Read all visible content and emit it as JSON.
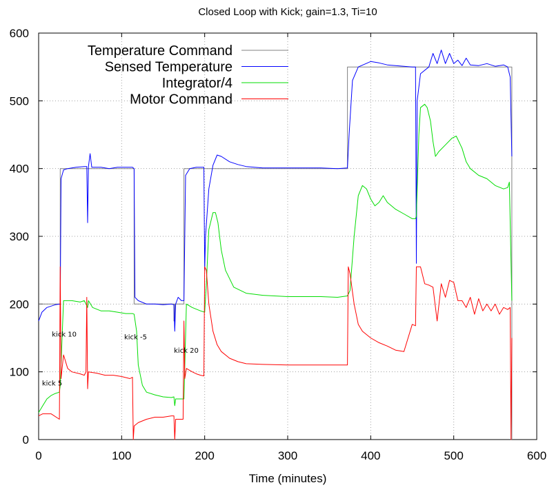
{
  "chart_data": {
    "type": "line",
    "title": "Closed Loop with Kick; gain=1.3, Ti=10",
    "xlabel": "Time (minutes)",
    "ylabel": "",
    "xlim": [
      0,
      600
    ],
    "ylim": [
      0,
      600
    ],
    "xticks": [
      "0",
      "100",
      "200",
      "300",
      "400",
      "500",
      "600"
    ],
    "yticks": [
      "0",
      "100",
      "200",
      "300",
      "400",
      "500",
      "600"
    ],
    "grid": true,
    "legend_position": "top-left",
    "series": [
      {
        "name": "Temperature Command",
        "color": "#808080",
        "points": [
          [
            0,
            200
          ],
          [
            26,
            200
          ],
          [
            26,
            400
          ],
          [
            115,
            400
          ],
          [
            115,
            200
          ],
          [
            163,
            200
          ],
          [
            163,
            175
          ],
          [
            164,
            175
          ],
          [
            164,
            200
          ],
          [
            175,
            200
          ],
          [
            175,
            400
          ],
          [
            372,
            400
          ],
          [
            372,
            550
          ],
          [
            570,
            550
          ],
          [
            570,
            0
          ]
        ]
      },
      {
        "name": "Sensed Temperature",
        "color": "#0000ff",
        "points": [
          [
            0,
            175
          ],
          [
            4,
            188
          ],
          [
            10,
            195
          ],
          [
            20,
            199
          ],
          [
            26,
            200
          ],
          [
            27,
            385
          ],
          [
            30,
            398
          ],
          [
            35,
            400
          ],
          [
            45,
            402
          ],
          [
            55,
            403
          ],
          [
            58,
            403
          ],
          [
            59,
            320
          ],
          [
            60,
            403
          ],
          [
            62,
            422
          ],
          [
            64,
            402
          ],
          [
            75,
            402
          ],
          [
            85,
            400
          ],
          [
            95,
            402
          ],
          [
            105,
            402
          ],
          [
            113,
            402
          ],
          [
            115,
            400
          ],
          [
            116,
            210
          ],
          [
            120,
            205
          ],
          [
            130,
            200
          ],
          [
            140,
            200
          ],
          [
            150,
            199
          ],
          [
            160,
            200
          ],
          [
            163,
            199
          ],
          [
            164,
            160
          ],
          [
            165,
            200
          ],
          [
            168,
            210
          ],
          [
            172,
            205
          ],
          [
            175,
            205
          ],
          [
            177,
            390
          ],
          [
            182,
            400
          ],
          [
            190,
            402
          ],
          [
            199,
            402
          ],
          [
            200,
            250
          ],
          [
            201,
            300
          ],
          [
            205,
            370
          ],
          [
            210,
            405
          ],
          [
            215,
            420
          ],
          [
            220,
            418
          ],
          [
            230,
            410
          ],
          [
            240,
            406
          ],
          [
            250,
            403
          ],
          [
            270,
            401
          ],
          [
            300,
            401
          ],
          [
            340,
            401
          ],
          [
            360,
            400
          ],
          [
            372,
            401
          ],
          [
            374,
            450
          ],
          [
            378,
            530
          ],
          [
            385,
            550
          ],
          [
            400,
            558
          ],
          [
            410,
            556
          ],
          [
            420,
            553
          ],
          [
            440,
            551
          ],
          [
            450,
            550
          ],
          [
            454,
            550
          ],
          [
            455,
            260
          ],
          [
            456,
            500
          ],
          [
            460,
            540
          ],
          [
            470,
            550
          ],
          [
            475,
            570
          ],
          [
            480,
            555
          ],
          [
            485,
            575
          ],
          [
            490,
            555
          ],
          [
            495,
            570
          ],
          [
            500,
            555
          ],
          [
            505,
            560
          ],
          [
            510,
            552
          ],
          [
            515,
            563
          ],
          [
            520,
            553
          ],
          [
            530,
            552
          ],
          [
            540,
            555
          ],
          [
            550,
            551
          ],
          [
            560,
            553
          ],
          [
            565,
            550
          ],
          [
            568,
            535
          ],
          [
            570,
            418
          ]
        ]
      },
      {
        "name": "Integrator/4",
        "color": "#00dd00",
        "points": [
          [
            0,
            40
          ],
          [
            5,
            50
          ],
          [
            10,
            60
          ],
          [
            15,
            65
          ],
          [
            20,
            68
          ],
          [
            25,
            70
          ],
          [
            26,
            80
          ],
          [
            30,
            205
          ],
          [
            40,
            205
          ],
          [
            50,
            203
          ],
          [
            55,
            205
          ],
          [
            57,
            200
          ],
          [
            59,
            195
          ],
          [
            60,
            205
          ],
          [
            65,
            195
          ],
          [
            75,
            190
          ],
          [
            85,
            190
          ],
          [
            95,
            188
          ],
          [
            105,
            186
          ],
          [
            113,
            186
          ],
          [
            115,
            185
          ],
          [
            118,
            160
          ],
          [
            120,
            110
          ],
          [
            125,
            80
          ],
          [
            130,
            70
          ],
          [
            140,
            66
          ],
          [
            150,
            63
          ],
          [
            160,
            62
          ],
          [
            163,
            63
          ],
          [
            164,
            50
          ],
          [
            165,
            60
          ],
          [
            168,
            60
          ],
          [
            172,
            60
          ],
          [
            175,
            60
          ],
          [
            178,
            200
          ],
          [
            185,
            195
          ],
          [
            195,
            190
          ],
          [
            200,
            188
          ],
          [
            202,
            230
          ],
          [
            205,
            310
          ],
          [
            210,
            335
          ],
          [
            213,
            335
          ],
          [
            216,
            320
          ],
          [
            220,
            280
          ],
          [
            225,
            250
          ],
          [
            235,
            225
          ],
          [
            250,
            216
          ],
          [
            270,
            213
          ],
          [
            300,
            211
          ],
          [
            340,
            211
          ],
          [
            360,
            210
          ],
          [
            372,
            212
          ],
          [
            375,
            220
          ],
          [
            380,
            300
          ],
          [
            385,
            360
          ],
          [
            390,
            375
          ],
          [
            395,
            370
          ],
          [
            400,
            355
          ],
          [
            405,
            345
          ],
          [
            410,
            350
          ],
          [
            415,
            360
          ],
          [
            420,
            350
          ],
          [
            430,
            340
          ],
          [
            440,
            333
          ],
          [
            450,
            326
          ],
          [
            454,
            326
          ],
          [
            455,
            330
          ],
          [
            458,
            450
          ],
          [
            460,
            490
          ],
          [
            465,
            495
          ],
          [
            468,
            490
          ],
          [
            472,
            470
          ],
          [
            475,
            440
          ],
          [
            478,
            418
          ],
          [
            482,
            425
          ],
          [
            490,
            435
          ],
          [
            498,
            445
          ],
          [
            503,
            448
          ],
          [
            510,
            430
          ],
          [
            515,
            410
          ],
          [
            520,
            400
          ],
          [
            530,
            390
          ],
          [
            540,
            385
          ],
          [
            550,
            375
          ],
          [
            560,
            370
          ],
          [
            565,
            372
          ],
          [
            567,
            380
          ],
          [
            570,
            205
          ]
        ]
      },
      {
        "name": "Motor Command",
        "color": "#ff0000",
        "points": [
          [
            0,
            35
          ],
          [
            5,
            38
          ],
          [
            15,
            38
          ],
          [
            25,
            30
          ],
          [
            26,
            255
          ],
          [
            27,
            90
          ],
          [
            30,
            125
          ],
          [
            35,
            105
          ],
          [
            40,
            100
          ],
          [
            50,
            97
          ],
          [
            55,
            95
          ],
          [
            57,
            100
          ],
          [
            58,
            210
          ],
          [
            59,
            75
          ],
          [
            60,
            100
          ],
          [
            70,
            98
          ],
          [
            80,
            95
          ],
          [
            90,
            95
          ],
          [
            100,
            93
          ],
          [
            110,
            90
          ],
          [
            113,
            92
          ],
          [
            114,
            0
          ],
          [
            115,
            20
          ],
          [
            120,
            25
          ],
          [
            130,
            30
          ],
          [
            140,
            33
          ],
          [
            150,
            33
          ],
          [
            160,
            35
          ],
          [
            163,
            35
          ],
          [
            164,
            0
          ],
          [
            165,
            30
          ],
          [
            168,
            30
          ],
          [
            174,
            30
          ],
          [
            175,
            175
          ],
          [
            176,
            90
          ],
          [
            178,
            105
          ],
          [
            185,
            100
          ],
          [
            190,
            97
          ],
          [
            195,
            95
          ],
          [
            199,
            94
          ],
          [
            200,
            255
          ],
          [
            202,
            250
          ],
          [
            205,
            200
          ],
          [
            210,
            160
          ],
          [
            215,
            140
          ],
          [
            220,
            130
          ],
          [
            230,
            120
          ],
          [
            240,
            115
          ],
          [
            250,
            112
          ],
          [
            270,
            111
          ],
          [
            300,
            110
          ],
          [
            340,
            110
          ],
          [
            360,
            110
          ],
          [
            372,
            110
          ],
          [
            373,
            255
          ],
          [
            375,
            245
          ],
          [
            380,
            200
          ],
          [
            385,
            170
          ],
          [
            390,
            160
          ],
          [
            400,
            150
          ],
          [
            410,
            143
          ],
          [
            420,
            138
          ],
          [
            430,
            132
          ],
          [
            440,
            130
          ],
          [
            450,
            170
          ],
          [
            454,
            168
          ],
          [
            455,
            255
          ],
          [
            460,
            255
          ],
          [
            465,
            230
          ],
          [
            470,
            228
          ],
          [
            475,
            225
          ],
          [
            480,
            175
          ],
          [
            485,
            230
          ],
          [
            490,
            210
          ],
          [
            495,
            235
          ],
          [
            500,
            232
          ],
          [
            505,
            205
          ],
          [
            510,
            205
          ],
          [
            515,
            195
          ],
          [
            520,
            210
          ],
          [
            525,
            185
          ],
          [
            530,
            208
          ],
          [
            535,
            190
          ],
          [
            540,
            200
          ],
          [
            545,
            190
          ],
          [
            550,
            200
          ],
          [
            555,
            185
          ],
          [
            560,
            195
          ],
          [
            565,
            192
          ],
          [
            568,
            195
          ],
          [
            569,
            0
          ],
          [
            570,
            150
          ]
        ]
      }
    ],
    "annotations": [
      {
        "text": "kick 5",
        "x": 4,
        "y": 80
      },
      {
        "text": "kick 10",
        "x": 16,
        "y": 152
      },
      {
        "text": "kick -5",
        "x": 103,
        "y": 148
      },
      {
        "text": "kick 20",
        "x": 163,
        "y": 128
      }
    ]
  }
}
